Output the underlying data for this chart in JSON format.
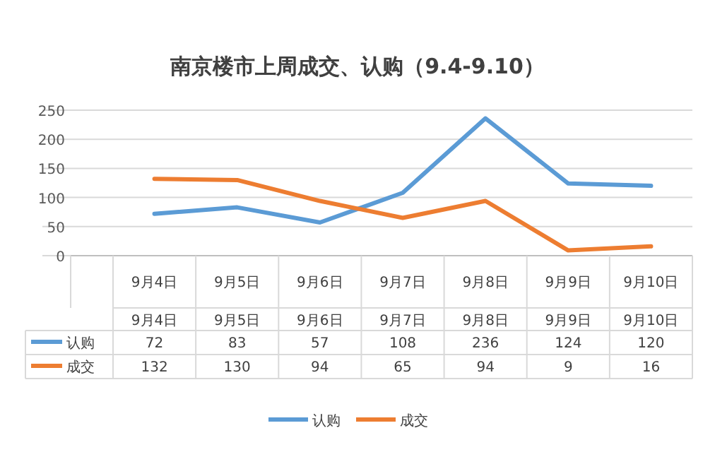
{
  "chart_data": {
    "type": "line",
    "title": "南京楼市上周成交、认购（9.4-9.10）",
    "categories": [
      "9月4日",
      "9月5日",
      "9月6日",
      "9月7日",
      "9月8日",
      "9月9日",
      "9月10日"
    ],
    "series": [
      {
        "name": "认购",
        "color": "#5b9bd5",
        "values": [
          72,
          83,
          57,
          108,
          236,
          124,
          120
        ]
      },
      {
        "name": "成交",
        "color": "#ed7d31",
        "values": [
          132,
          130,
          94,
          65,
          94,
          9,
          16
        ]
      }
    ],
    "ylim": [
      0,
      250
    ],
    "yticks": [
      0,
      50,
      100,
      150,
      200,
      250
    ],
    "grid": "y",
    "legend": "bottom",
    "data_labels": true,
    "marker": "none",
    "line_style": "solid"
  }
}
